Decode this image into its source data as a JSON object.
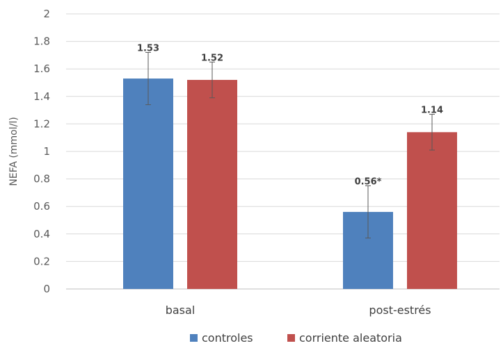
{
  "chart_data": {
    "type": "bar",
    "title": "",
    "xlabel": "",
    "ylabel": "NEFA (mmol/l)",
    "ylim": [
      0,
      2
    ],
    "yticks": [
      "0",
      "0.2",
      "0.4",
      "0.6",
      "0.8",
      "1",
      "1.2",
      "1.4",
      "1.6",
      "1.8",
      "2"
    ],
    "grid": true,
    "legend_position": "bottom",
    "categories": [
      "basal",
      "post-estrés"
    ],
    "series": [
      {
        "name": "controles",
        "color": "#4f81bd",
        "values": [
          1.53,
          0.56
        ],
        "errors": [
          0.19,
          0.19
        ],
        "labels": [
          "1.53",
          "0.56*"
        ]
      },
      {
        "name": "corriente aleatoria",
        "color": "#c0504d",
        "values": [
          1.52,
          1.14
        ],
        "errors": [
          0.13,
          0.13
        ],
        "labels": [
          "1.52",
          "1.14"
        ]
      }
    ]
  }
}
